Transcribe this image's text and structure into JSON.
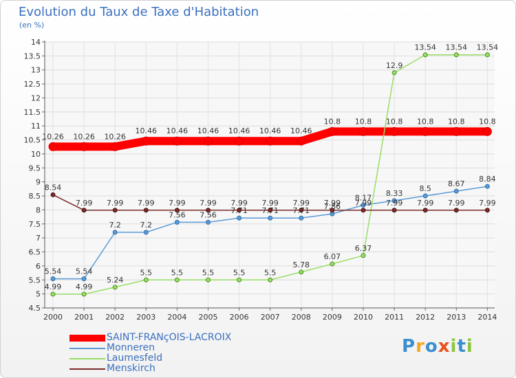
{
  "chart_data": {
    "type": "line",
    "title": "Evolution du Taux de Taxe d'Habitation",
    "subtitle": "(en %)",
    "categories": [
      "2000",
      "2001",
      "2002",
      "2003",
      "2004",
      "2005",
      "2006",
      "2007",
      "2008",
      "2009",
      "2010",
      "2011",
      "2012",
      "2013",
      "2014"
    ],
    "y_ticks": [
      "4.5",
      "5",
      "5.5",
      "6",
      "6.5",
      "7",
      "7.5",
      "8",
      "8.5",
      "9",
      "9.5",
      "10",
      "10.5",
      "11",
      "11.5",
      "12",
      "12.5",
      "13",
      "13.5",
      "14"
    ],
    "ylim": [
      4.5,
      14
    ],
    "grid": true,
    "legend_position": "bottom-left",
    "series": [
      {
        "name": "SAINT-FRANçOIS-LACROIX",
        "color": "#ff0000",
        "values": [
          10.26,
          10.26,
          10.26,
          10.46,
          10.46,
          10.46,
          10.46,
          10.46,
          10.46,
          10.8,
          10.8,
          10.8,
          10.8,
          10.8,
          10.8
        ],
        "labels": [
          "10.26",
          "10.26",
          "10.26",
          "10.46",
          "10.46",
          "10.46",
          "10.46",
          "10.46",
          "10.46",
          "10.8",
          "10.8",
          "10.8",
          "10.8",
          "10.8",
          "10.8"
        ]
      },
      {
        "name": "Monneren",
        "color": "#5b9bd5",
        "values": [
          5.54,
          5.54,
          7.2,
          7.2,
          7.56,
          7.56,
          7.71,
          7.71,
          7.71,
          7.86,
          8.17,
          8.33,
          8.5,
          8.67,
          8.84
        ],
        "labels": [
          "5.54",
          "5.54",
          "7.2",
          "7.2",
          "7.56",
          "7.56",
          "7.71",
          "7.71",
          "7.71",
          "7.86",
          "8.17",
          "8.33",
          "8.5",
          "8.67",
          "8.84"
        ]
      },
      {
        "name": "Laumesfeld",
        "color": "#99dd66",
        "values": [
          4.99,
          4.99,
          5.24,
          5.5,
          5.5,
          5.5,
          5.5,
          5.5,
          5.78,
          6.07,
          6.37,
          12.9,
          13.54,
          13.54,
          13.54
        ],
        "labels": [
          "4.99",
          "4.99",
          "5.24",
          "5.5",
          "5.5",
          "5.5",
          "5.5",
          "5.5",
          "5.78",
          "6.07",
          "6.37",
          "12.9",
          "13.54",
          "13.54",
          "13.54"
        ]
      },
      {
        "name": "Menskirch",
        "color": "#7b2a2a",
        "values": [
          8.54,
          7.99,
          7.99,
          7.99,
          7.99,
          7.99,
          7.99,
          7.99,
          7.99,
          7.99,
          7.99,
          7.99,
          7.99,
          7.99,
          7.99
        ],
        "labels": [
          "8.54",
          "7.99",
          "7.99",
          "7.99",
          "7.99",
          "7.99",
          "7.99",
          "7.99",
          "7.99",
          "7.99",
          "7.99",
          "7.99",
          "7.99",
          "7.99",
          "7.99"
        ]
      }
    ]
  },
  "logo": {
    "letters": [
      "P",
      "r",
      "o",
      "x",
      "i",
      "t",
      "i"
    ],
    "colors": [
      "#3a8fd0",
      "#f5a623",
      "#3a8fd0",
      "#e94e1b",
      "#8cc63f",
      "#3a8fd0",
      "#8cc63f"
    ]
  }
}
